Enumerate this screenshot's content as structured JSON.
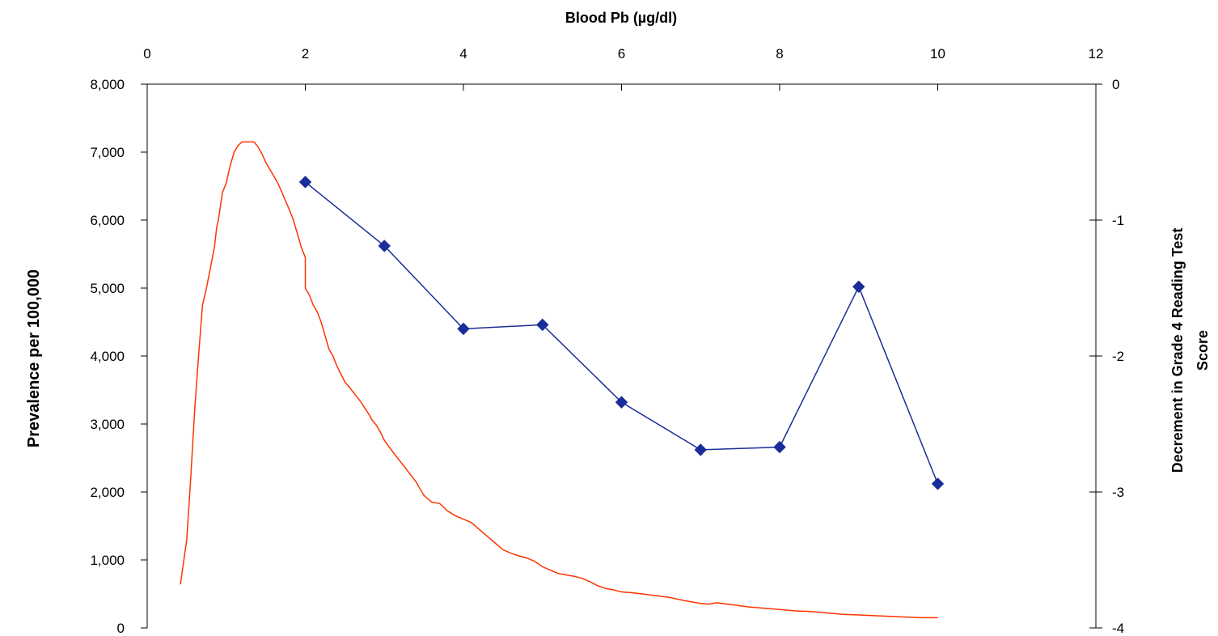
{
  "chart_data": {
    "type": "line",
    "title": "",
    "x_axis": {
      "label": "Blood Pb (µg/dl)",
      "position": "top",
      "range": [
        0,
        12
      ],
      "ticks": [
        0,
        2,
        4,
        6,
        8,
        10,
        12
      ],
      "tick_labels": [
        "0",
        "2",
        "4",
        "6",
        "8",
        "10",
        "12"
      ]
    },
    "y_left": {
      "label": "Prevalence per 100,000",
      "range": [
        0,
        8000
      ],
      "ticks": [
        0,
        1000,
        2000,
        3000,
        4000,
        5000,
        6000,
        7000,
        8000
      ],
      "tick_labels": [
        "0",
        "1,000",
        "2,000",
        "3,000",
        "4,000",
        "5,000",
        "6,000",
        "7,000",
        "8,000"
      ]
    },
    "y_right": {
      "label_lines": [
        "Decrement in Grade 4 Reading Test",
        "Score"
      ],
      "range": [
        -4,
        0
      ],
      "ticks": [
        0,
        -1,
        -2,
        -3,
        -4
      ],
      "tick_labels": [
        "0",
        "-1",
        "-2",
        "-3",
        "-4"
      ]
    },
    "grid": false,
    "legend": "none",
    "series": [
      {
        "axis": "left",
        "color": "#FF3300",
        "marker": "none",
        "x": [
          0.42,
          0.5,
          0.55,
          0.6,
          0.65,
          0.7,
          0.75,
          0.8,
          0.85,
          0.88,
          0.9,
          0.92,
          0.95,
          1.0,
          1.05,
          1.1,
          1.15,
          1.2,
          1.25,
          1.3,
          1.35,
          1.4,
          1.45,
          1.5,
          1.55,
          1.6,
          1.65,
          1.7,
          1.75,
          1.8,
          1.85,
          1.9,
          1.95,
          2.0,
          2.0,
          2.05,
          2.1,
          2.15,
          2.2,
          2.25,
          2.3,
          2.35,
          2.4,
          2.5,
          2.6,
          2.7,
          2.8,
          2.85,
          2.9,
          2.95,
          3.0,
          3.1,
          3.2,
          3.3,
          3.4,
          3.5,
          3.6,
          3.7,
          3.8,
          3.9,
          4.0,
          4.1,
          4.2,
          4.3,
          4.4,
          4.5,
          4.6,
          4.7,
          4.8,
          4.9,
          5.0,
          5.1,
          5.2,
          5.3,
          5.4,
          5.5,
          5.6,
          5.7,
          5.8,
          5.9,
          6.0,
          6.1,
          6.2,
          6.4,
          6.6,
          6.8,
          7.0,
          7.1,
          7.2,
          7.4,
          7.6,
          7.8,
          8.0,
          8.2,
          8.4,
          8.6,
          8.8,
          9.0,
          9.2,
          9.4,
          9.6,
          9.8,
          10.0
        ],
        "values": [
          640,
          1300,
          2200,
          3200,
          4000,
          4750,
          5000,
          5300,
          5600,
          5900,
          6000,
          6150,
          6400,
          6550,
          6800,
          7000,
          7100,
          7150,
          7150,
          7150,
          7150,
          7080,
          6980,
          6850,
          6750,
          6650,
          6550,
          6420,
          6280,
          6150,
          6000,
          5800,
          5600,
          5450,
          5000,
          4900,
          4750,
          4650,
          4500,
          4300,
          4100,
          4000,
          3850,
          3620,
          3480,
          3330,
          3150,
          3050,
          2980,
          2880,
          2760,
          2600,
          2450,
          2300,
          2150,
          1950,
          1850,
          1830,
          1720,
          1650,
          1600,
          1550,
          1450,
          1350,
          1250,
          1150,
          1100,
          1060,
          1030,
          980,
          900,
          850,
          800,
          780,
          760,
          730,
          680,
          620,
          580,
          560,
          530,
          520,
          510,
          480,
          450,
          400,
          360,
          350,
          370,
          340,
          310,
          290,
          270,
          250,
          240,
          220,
          200,
          190,
          180,
          170,
          160,
          150,
          150
        ]
      },
      {
        "axis": "right",
        "color": "#1A2D99",
        "marker": "diamond",
        "x": [
          2,
          3,
          4,
          5,
          6,
          7,
          8,
          9,
          10
        ],
        "values": [
          -0.72,
          -1.19,
          -1.8,
          -1.77,
          -2.34,
          -2.69,
          -2.67,
          -1.49,
          -2.94
        ]
      }
    ]
  }
}
